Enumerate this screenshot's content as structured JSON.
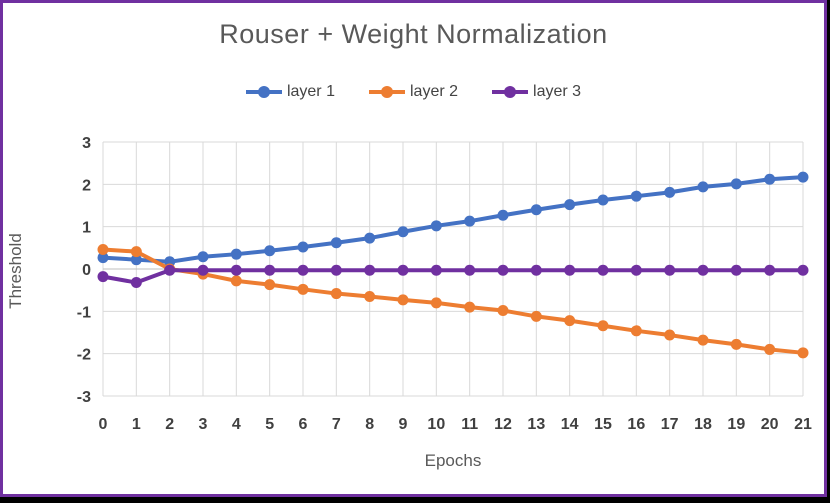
{
  "frame": {
    "border_color": "#7030A0",
    "outer_edge_color": "#000000",
    "panel_background": "#FFFFFF"
  },
  "chart_data": {
    "type": "line",
    "title": "Rouser + Weight Normalization",
    "xlabel": "Epochs",
    "ylabel": "Threshold",
    "x": [
      0,
      1,
      2,
      3,
      4,
      5,
      6,
      7,
      8,
      9,
      10,
      11,
      12,
      13,
      14,
      15,
      16,
      17,
      18,
      19,
      20,
      21
    ],
    "x_tick_labels": [
      "0",
      "1",
      "2",
      "3",
      "4",
      "5",
      "6",
      "7",
      "8",
      "9",
      "10",
      "11",
      "12",
      "13",
      "14",
      "15",
      "16",
      "17",
      "18",
      "19",
      "20",
      "21"
    ],
    "y_ticks": [
      3,
      2,
      1,
      0,
      -1,
      -2,
      -3
    ],
    "ylim": [
      -3,
      3
    ],
    "grid": true,
    "legend_position": "top",
    "marker": "circle",
    "series": [
      {
        "name": "layer 1",
        "color": "#4472C4",
        "values": [
          0.27,
          0.22,
          0.17,
          0.29,
          0.35,
          0.43,
          0.52,
          0.62,
          0.73,
          0.88,
          1.02,
          1.13,
          1.27,
          1.4,
          1.52,
          1.63,
          1.72,
          1.81,
          1.94,
          2.01,
          2.12,
          2.17
        ]
      },
      {
        "name": "layer 2",
        "color": "#ED7D31",
        "values": [
          0.46,
          0.41,
          0.0,
          -0.12,
          -0.28,
          -0.37,
          -0.48,
          -0.58,
          -0.65,
          -0.73,
          -0.8,
          -0.9,
          -0.98,
          -1.12,
          -1.22,
          -1.34,
          -1.46,
          -1.56,
          -1.68,
          -1.78,
          -1.9,
          -1.98
        ]
      },
      {
        "name": "layer 3",
        "color": "#7030A0",
        "values": [
          -0.18,
          -0.32,
          -0.03,
          -0.03,
          -0.03,
          -0.03,
          -0.03,
          -0.03,
          -0.03,
          -0.03,
          -0.03,
          -0.03,
          -0.03,
          -0.03,
          -0.03,
          -0.03,
          -0.03,
          -0.03,
          -0.03,
          -0.03,
          -0.03,
          -0.03
        ]
      }
    ],
    "style": {
      "gridline_color": "#D9D9D9",
      "zero_line_color": "#BFBFBF",
      "tick_label_color": "#404040",
      "title_color": "#595959",
      "line_width": 4,
      "marker_radius": 5.5
    }
  }
}
